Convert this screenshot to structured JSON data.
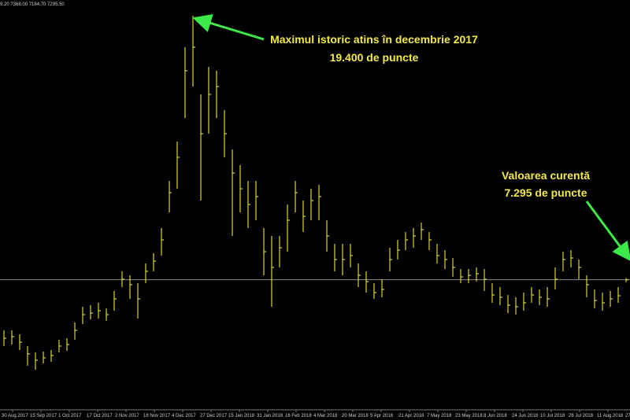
{
  "chart_data": {
    "type": "ohlc",
    "header": "9.20 7368.00 7184.70 7295.50",
    "annotations": [
      "Maximul istoric atins în decembrie 2017",
      "19.400 de puncte",
      "Valoarea curentă",
      "7.295 de puncte"
    ],
    "x_tick_labels": [
      "30 Aug 2017",
      "15 Sep 2017",
      "1 Oct 2017",
      "17 Oct 2017",
      "2 Nov 2017",
      "18 Nov 2017",
      "4 Dec 2017",
      "27 Dec 2017",
      "15 Jan 2018",
      "31 Jan 2018",
      "16 Feb 2018",
      "4 Mar 2018",
      "20 Mar 2018",
      "5 Apr 2018",
      "21 Apr 2018",
      "7 May 2018",
      "23 May 2018",
      "8 Jun 2018",
      "24 Jun 2018",
      "10 Jul 2018",
      "26 Jul 2018",
      "11 Aug 2018",
      "27"
    ],
    "color": "#d8d43a",
    "price_line": 7295.5,
    "price_line_color": "#8a8a8a",
    "ylim": [
      1380,
      20100
    ],
    "high": [
      4980,
      4980,
      4800,
      4260,
      3972,
      4008,
      4080,
      4548,
      4620,
      5340,
      6060,
      6132,
      6240,
      5988,
      6780,
      7680,
      7500,
      7140,
      8040,
      8508,
      9660,
      11820,
      13620,
      17940,
      19380,
      15780,
      17040,
      16860,
      15060,
      13260,
      12540,
      11820,
      11820,
      9660,
      9300,
      9300,
      10740,
      11820,
      10920,
      11460,
      11640,
      10020,
      8940,
      8940,
      8940,
      8040,
      7680,
      7140,
      7320,
      8760,
      9120,
      9480,
      9660,
      9912,
      9480,
      8940,
      8652,
      8292,
      7788,
      7788,
      7860,
      7788,
      7140,
      6960,
      6600,
      6492,
      6708,
      6960,
      6852,
      6960,
      7860,
      8580,
      8652,
      8220,
      7500,
      6852,
      6708,
      6780,
      6960,
      7368
    ],
    "low": [
      4260,
      4332,
      4080,
      3360,
      3180,
      3468,
      3540,
      3972,
      4044,
      4548,
      5268,
      5484,
      5520,
      5412,
      5880,
      6960,
      6420,
      5520,
      7140,
      7680,
      8400,
      10380,
      11460,
      14700,
      16140,
      10920,
      13980,
      14700,
      12900,
      9300,
      10380,
      9660,
      10020,
      7500,
      6060,
      7860,
      8580,
      10380,
      9480,
      10020,
      10020,
      8580,
      7680,
      7500,
      7860,
      6960,
      6708,
      6420,
      6492,
      7680,
      8220,
      8652,
      8760,
      9120,
      8652,
      8040,
      7788,
      7428,
      7140,
      7140,
      7212,
      6780,
      6240,
      6132,
      5772,
      5700,
      5880,
      6240,
      6132,
      6060,
      6852,
      7680,
      7860,
      7320,
      6492,
      5988,
      5880,
      6060,
      6240,
      7184.7
    ],
    "close": [
      4620,
      4692,
      4440,
      3900,
      3612,
      3720,
      3828,
      4260,
      4332,
      4980,
      5700,
      5772,
      5880,
      5700,
      6420,
      7320,
      7068,
      6420,
      7680,
      8148,
      9120,
      11280,
      12900,
      16860,
      17940,
      13980,
      15780,
      16140,
      13980,
      12180,
      11460,
      10740,
      11100,
      8580,
      7860,
      8760,
      10020,
      11280,
      10200,
      10920,
      11100,
      9300,
      8220,
      8220,
      8400,
      7500,
      7212,
      6708,
      6852,
      8220,
      8652,
      9120,
      9300,
      9588,
      9120,
      8400,
      8220,
      7860,
      7428,
      7500,
      7572,
      7320,
      6600,
      6492,
      6132,
      6060,
      6240,
      6600,
      6492,
      6420,
      7320,
      8220,
      8292,
      7860,
      7068,
      6348,
      6240,
      6420,
      6564,
      7295.5
    ]
  }
}
